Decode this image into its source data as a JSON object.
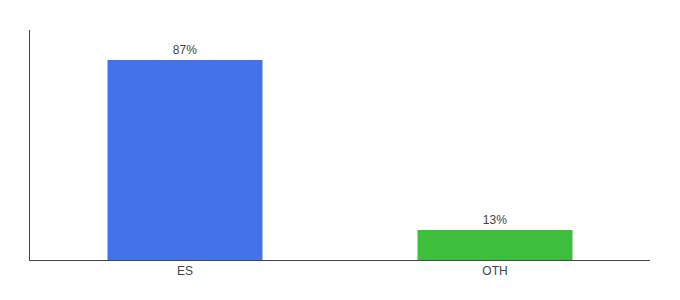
{
  "chart_data": {
    "type": "bar",
    "categories": [
      "ES",
      "OTH"
    ],
    "values": [
      87,
      13
    ],
    "value_labels": [
      "87%",
      "13%"
    ],
    "colors": [
      "#4472e8",
      "#3dbf3d"
    ],
    "ylim": [
      0,
      100
    ],
    "data_labels": true,
    "tick_labels": "x",
    "grid": false
  }
}
